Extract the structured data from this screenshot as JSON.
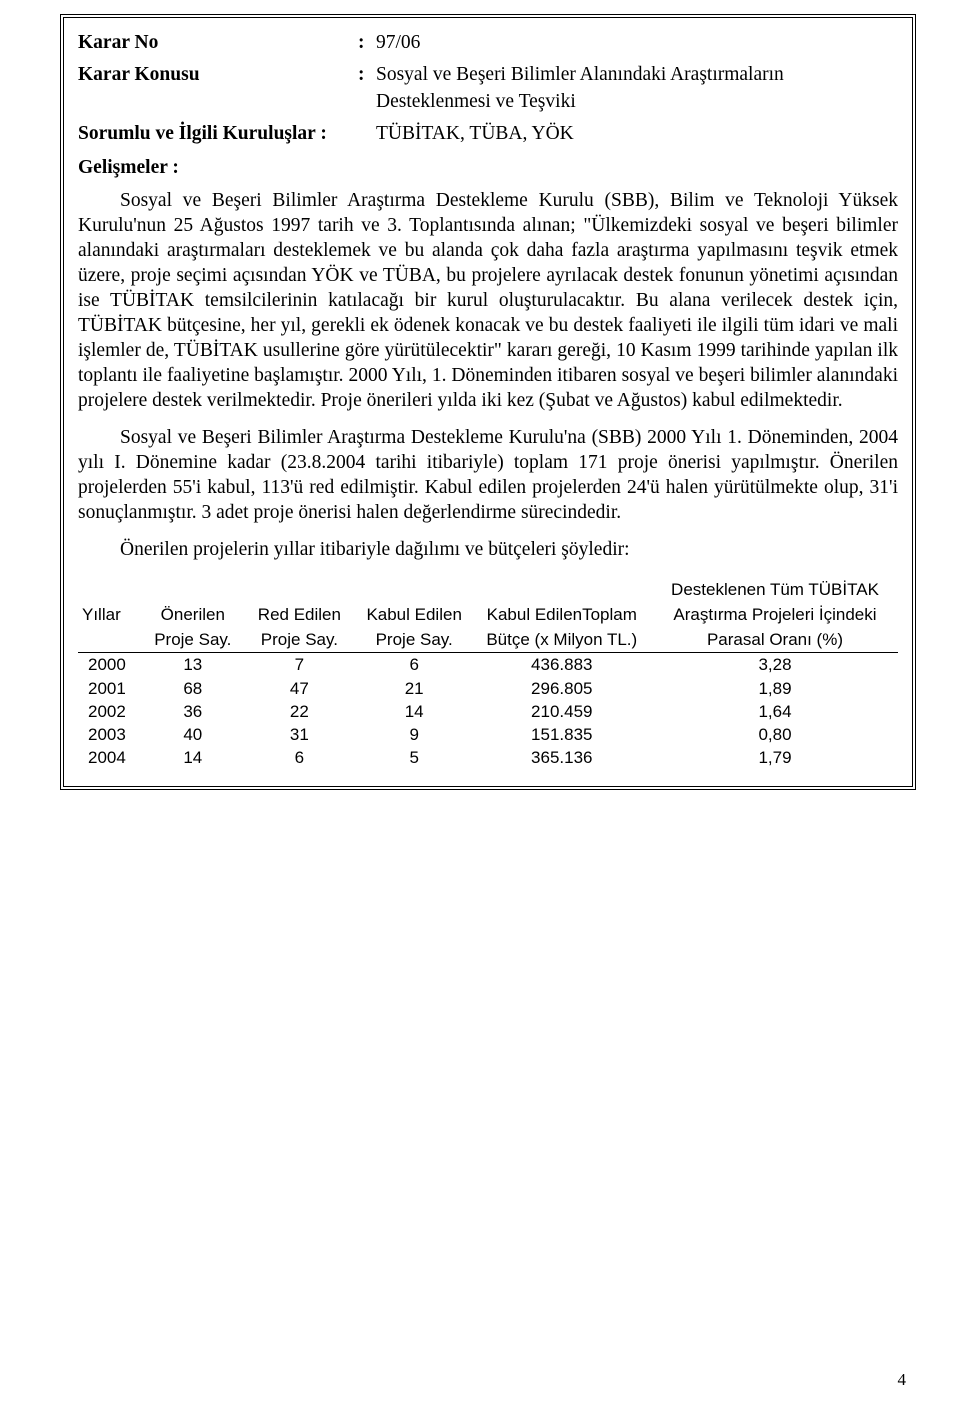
{
  "header": {
    "karar_no_label": "Karar No",
    "karar_no_value": "97/06",
    "karar_konusu_label": "Karar Konusu",
    "karar_konusu_value": "Sosyal ve Beşeri Bilimler Alanındaki Araştırmaların Desteklenmesi ve Teşviki",
    "sorumlu_label": "Sorumlu  ve İlgili Kuruluşlar :",
    "sorumlu_value": "TÜBİTAK, TÜBA, YÖK",
    "gelismeler_label": "Gelişmeler :",
    "colon": ":"
  },
  "paragraphs": {
    "p1": "Sosyal ve Beşeri Bilimler Araştırma Destekleme Kurulu (SBB), Bilim ve Teknoloji Yüksek Kurulu'nun 25 Ağustos 1997 tarih ve 3. Toplantısında alınan; \"Ülkemizdeki sosyal ve beşeri bilimler alanındaki araştırmaları desteklemek ve bu alanda çok daha fazla araştırma yapılmasını teşvik etmek üzere, proje seçimi açısından YÖK ve TÜBA, bu projelere ayrılacak destek fonunun yönetimi açısından ise TÜBİTAK temsilcilerinin katılacağı bir kurul oluşturulacaktır. Bu alana verilecek destek için, TÜBİTAK bütçesine, her yıl, gerekli ek ödenek konacak ve bu destek faaliyeti ile ilgili tüm idari ve mali işlemler de, TÜBİTAK usullerine göre yürütülecektir\" kararı gereği, 10 Kasım 1999 tarihinde yapılan ilk toplantı ile faaliyetine başlamıştır. 2000 Yılı, 1. Döneminden itibaren sosyal ve beşeri bilimler alanındaki projelere destek verilmektedir. Proje önerileri yılda iki kez (Şubat ve Ağustos) kabul edilmektedir.",
    "p2": "Sosyal ve Beşeri Bilimler Araştırma Destekleme Kurulu'na (SBB) 2000 Yılı 1. Döneminden, 2004 yılı I. Dönemine kadar (23.8.2004 tarihi itibariyle) toplam 171 proje önerisi yapılmıştır. Önerilen projelerden 55'i kabul, 113'ü red edilmiştir. Kabul edilen projelerden 24'ü halen yürütülmekte olup, 31'i sonuçlanmıştır. 3 adet proje önerisi halen değerlendirme sürecindedir.",
    "intro": "Önerilen projelerin yıllar itibariyle dağılımı ve bütçeleri şöyledir:"
  },
  "table": {
    "columns": {
      "c0_l1": "Yıllar",
      "c1_l1": "Önerilen",
      "c1_l2": "Proje Say.",
      "c2_l1": "Red Edilen",
      "c2_l2": "Proje Say.",
      "c3_l1": "Kabul Edilen",
      "c3_l2": "Proje Say.",
      "c4_l1": "Kabul EdilenToplam",
      "c4_l2": "Bütçe (x Milyon TL.)",
      "c5_l1": "Desteklenen Tüm TÜBİTAK",
      "c5_l2": "Araştırma Projeleri İçindeki",
      "c5_l3": "Parasal Oranı (%)"
    },
    "rows": [
      {
        "year": "2000",
        "onerilen": "13",
        "red": "7",
        "kabul": "6",
        "butce": "436.883",
        "oran": "3,28"
      },
      {
        "year": "2001",
        "onerilen": "68",
        "red": "47",
        "kabul": "21",
        "butce": "296.805",
        "oran": "1,89"
      },
      {
        "year": "2002",
        "onerilen": "36",
        "red": "22",
        "kabul": "14",
        "butce": "210.459",
        "oran": "1,64"
      },
      {
        "year": "2003",
        "onerilen": "40",
        "red": "31",
        "kabul": "9",
        "butce": "151.835",
        "oran": "0,80"
      },
      {
        "year": "2004",
        "onerilen": "14",
        "red": "6",
        "kabul": "5",
        "butce": "365.136",
        "oran": "1,79"
      }
    ]
  },
  "page_number": "4"
}
